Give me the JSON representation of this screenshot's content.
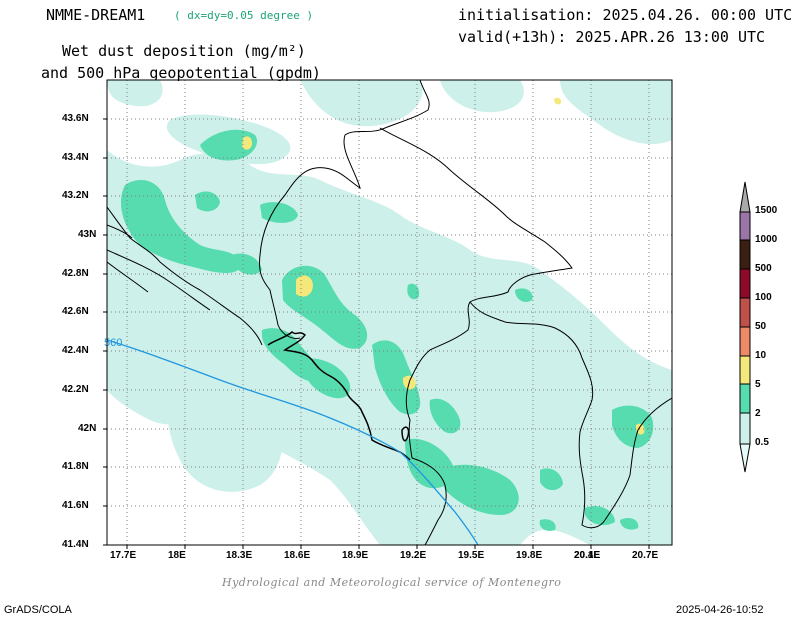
{
  "header": {
    "model": "NMME-DREAM1",
    "resolution": "( dx=dy=0.05 degree )",
    "title_line1": "Wet dust deposition (mg/m²)",
    "title_line2": "and 500 hPa geopotential (gpdm)",
    "init": "initialisation: 2025.04.26. 00:00 UTC",
    "valid": "valid(+13h): 2025.APR.26 13:00 UTC"
  },
  "axes": {
    "lat_ticks": [
      "43.6N",
      "43.4N",
      "43.2N",
      "43N",
      "42.8N",
      "42.6N",
      "42.4N",
      "42.2N",
      "42N",
      "41.8N",
      "41.6N",
      "41.4N"
    ],
    "lon_ticks": [
      "17.7E",
      "18E",
      "18.3E",
      "18.6E",
      "18.9E",
      "19.2E",
      "19.5E",
      "19.8E",
      "20.1E",
      "20.4E",
      "20.7E"
    ]
  },
  "contour_label": "560",
  "legend": {
    "levels": [
      "0.5",
      "2",
      "5",
      "10",
      "50",
      "100",
      "500",
      "1000",
      "1500"
    ],
    "colors": [
      "#cdf0ea",
      "#56dcae",
      "#f5e87a",
      "#ee8a68",
      "#c0504a",
      "#8f0a2a",
      "#3a1f12",
      "#9b74a8",
      "#aaaaaa"
    ]
  },
  "footer": {
    "credit": "Hydrological and Meteorological service of Montenegro",
    "left": "GrADS/COLA",
    "right": "2025-04-26-10:52"
  }
}
